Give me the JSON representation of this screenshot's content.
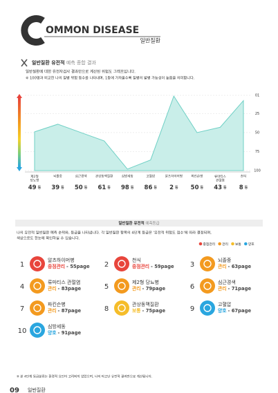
{
  "header": {
    "logo_rest": "OMMON DISEASE",
    "subtitle": "일반질환"
  },
  "section1": {
    "title_bold": "일반질환 유전적",
    "title_light": "예측 종합 결과",
    "desc": "일반질환에 대한 유전자검사 결과만으로 계산된 위험도 그래프입니다.",
    "note": "※ 100명과 비교한 나의 질병 위험 등수를 나타내며, 1등에 가까울수록 질병의 발병 가능성이 높음을 의미합니다."
  },
  "chart_data": {
    "type": "area",
    "categories": [
      "제2형 당뇨병",
      "뇌졸중",
      "심근경색",
      "관상동맥질환",
      "심방세동",
      "고혈압",
      "알츠하이머병",
      "파킨슨병",
      "류마티스 관절염",
      "천식"
    ],
    "values": [
      49,
      39,
      50,
      61,
      98,
      86,
      2,
      50,
      43,
      8
    ],
    "value_unit": "등",
    "color": "#6fd0c5",
    "ylim": [
      1,
      100
    ],
    "y_inverted": true,
    "yticks": [
      {
        "value": 1,
        "label": "01"
      },
      25,
      50,
      75,
      100
    ],
    "grid": true
  },
  "section2": {
    "title_bold": "일반질환 유전적",
    "title_light": "예측등급",
    "desc1": "나의 유전적 일반질환 예측 순위와, 등급을 나타냅니다. 각 일반질환 항목의 4단계 등급은 '유전적 위험도 점수'에 따라 결정되며,",
    "desc2": "색상으로도 한눈에 확인하실 수 있습니다.",
    "grades": [
      {
        "name": "중점관리",
        "color": "#e8453c"
      },
      {
        "name": "관리",
        "color": "#f39a1f"
      },
      {
        "name": "보통",
        "color": "#f5bd2a"
      },
      {
        "name": "양호",
        "color": "#2aa6df"
      }
    ],
    "items": [
      {
        "no": "1",
        "name": "알츠하이머병",
        "grade": "중점관리",
        "page": "- 55page"
      },
      {
        "no": "2",
        "name": "천식",
        "grade": "중점관리",
        "page": "- 59page"
      },
      {
        "no": "3",
        "name": "뇌졸중",
        "grade": "관리",
        "page": "- 63page"
      },
      {
        "no": "4",
        "name": "류마티스 관절염",
        "grade": "관리",
        "page": "- 83page"
      },
      {
        "no": "5",
        "name": "제2형 당뇨병",
        "grade": "관리",
        "page": "- 79page"
      },
      {
        "no": "6",
        "name": "심근경색",
        "grade": "관리",
        "page": "- 71page"
      },
      {
        "no": "7",
        "name": "파킨슨병",
        "grade": "관리",
        "page": "- 87page"
      },
      {
        "no": "8",
        "name": "관상동맥질환",
        "grade": "보통",
        "page": "- 75page"
      },
      {
        "no": "9",
        "name": "고혈압",
        "grade": "양호",
        "page": "- 67page"
      },
      {
        "no": "10",
        "name": "심방세동",
        "grade": "양호",
        "page": "- 91page"
      }
    ],
    "footnote": "※ 본 4단계 등급분류는 환경적 요인이 고려되지 않았으며, 나의 타고난 유전적 결과만으로 계산됩니다."
  },
  "footer": {
    "page_no": "09",
    "label": "일반질환"
  }
}
